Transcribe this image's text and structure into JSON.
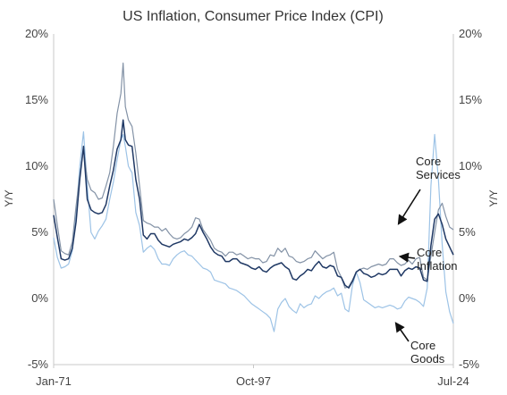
{
  "chart_data": {
    "type": "line",
    "title": "US Inflation, Consumer Price Index (CPI)",
    "ylabel": "Y/Y",
    "ylabel_right": "Y/Y",
    "ylim": [
      -5,
      20
    ],
    "yticks": [
      -5,
      0,
      5,
      10,
      15,
      20
    ],
    "ytick_labels": [
      "-5%",
      "0%",
      "5%",
      "10%",
      "15%",
      "20%"
    ],
    "xlim": [
      1971.0,
      2024.5
    ],
    "xticks": [
      1971.0,
      1997.75,
      2024.5
    ],
    "xtick_labels": [
      "Jan-71",
      "Oct-97",
      "Jul-24"
    ],
    "grid": false,
    "legend": "none",
    "series": [
      {
        "name": "Core Services",
        "color": "#8392a6",
        "x": [
          1971.0,
          1971.5,
          1972.0,
          1972.5,
          1973.0,
          1973.5,
          1974.0,
          1974.5,
          1975.0,
          1975.5,
          1976.0,
          1976.5,
          1977.0,
          1977.5,
          1978.0,
          1978.5,
          1979.0,
          1979.5,
          1980.0,
          1980.3,
          1980.6,
          1981.0,
          1981.5,
          1982.0,
          1982.5,
          1983.0,
          1983.5,
          1984.0,
          1984.5,
          1985.0,
          1985.5,
          1986.0,
          1986.5,
          1987.0,
          1987.5,
          1988.0,
          1988.5,
          1989.0,
          1989.5,
          1990.0,
          1990.5,
          1991.0,
          1991.5,
          1992.0,
          1992.5,
          1993.0,
          1993.5,
          1994.0,
          1994.5,
          1995.0,
          1995.5,
          1996.0,
          1996.5,
          1997.0,
          1997.5,
          1998.0,
          1998.5,
          1999.0,
          1999.5,
          2000.0,
          2000.5,
          2001.0,
          2001.5,
          2002.0,
          2002.5,
          2003.0,
          2003.5,
          2004.0,
          2004.5,
          2005.0,
          2005.5,
          2006.0,
          2006.5,
          2007.0,
          2007.5,
          2008.0,
          2008.5,
          2009.0,
          2009.5,
          2010.0,
          2010.5,
          2011.0,
          2011.5,
          2012.0,
          2012.5,
          2013.0,
          2013.5,
          2014.0,
          2014.5,
          2015.0,
          2015.5,
          2016.0,
          2016.5,
          2017.0,
          2017.5,
          2018.0,
          2018.5,
          2019.0,
          2019.5,
          2020.0,
          2020.5,
          2021.0,
          2021.5,
          2022.0,
          2022.5,
          2023.0,
          2023.5,
          2024.0,
          2024.5
        ],
        "y": [
          7.5,
          5.5,
          3.6,
          3.4,
          3.3,
          4.3,
          7.0,
          9.3,
          11.3,
          9.0,
          8.2,
          8.0,
          7.5,
          7.6,
          8.5,
          9.5,
          11.5,
          14.0,
          15.5,
          17.8,
          14.5,
          13.5,
          13.0,
          11.0,
          8.5,
          5.9,
          5.7,
          5.6,
          5.4,
          5.4,
          5.1,
          5.3,
          4.9,
          4.6,
          4.5,
          4.6,
          4.9,
          5.1,
          5.4,
          6.1,
          6.0,
          5.2,
          4.8,
          4.4,
          3.8,
          3.6,
          3.5,
          3.2,
          3.5,
          3.5,
          3.3,
          3.4,
          3.2,
          3.0,
          3.1,
          3.0,
          3.0,
          2.7,
          2.8,
          3.3,
          3.2,
          3.8,
          3.5,
          3.8,
          3.2,
          3.1,
          2.8,
          2.7,
          2.8,
          3.0,
          3.1,
          3.6,
          3.3,
          3.0,
          3.2,
          3.3,
          3.5,
          2.2,
          1.6,
          0.8,
          0.9,
          1.4,
          2.0,
          2.2,
          2.3,
          2.2,
          2.4,
          2.5,
          2.6,
          2.5,
          2.6,
          3.0,
          3.0,
          2.7,
          2.5,
          2.6,
          2.9,
          2.6,
          3.0,
          3.1,
          1.6,
          1.4,
          3.2,
          5.0,
          6.7,
          7.2,
          6.2,
          5.4,
          5.2
        ]
      },
      {
        "name": "Core Inflation",
        "color": "#1f3864",
        "x": [
          1971.0,
          1971.5,
          1972.0,
          1972.5,
          1973.0,
          1973.5,
          1974.0,
          1974.5,
          1975.0,
          1975.5,
          1976.0,
          1976.5,
          1977.0,
          1977.5,
          1978.0,
          1978.5,
          1979.0,
          1979.5,
          1980.0,
          1980.3,
          1980.6,
          1981.0,
          1981.5,
          1982.0,
          1982.5,
          1983.0,
          1983.5,
          1984.0,
          1984.5,
          1985.0,
          1985.5,
          1986.0,
          1986.5,
          1987.0,
          1987.5,
          1988.0,
          1988.5,
          1989.0,
          1989.5,
          1990.0,
          1990.5,
          1991.0,
          1991.5,
          1992.0,
          1992.5,
          1993.0,
          1993.5,
          1994.0,
          1994.5,
          1995.0,
          1995.5,
          1996.0,
          1996.5,
          1997.0,
          1997.5,
          1998.0,
          1998.5,
          1999.0,
          1999.5,
          2000.0,
          2000.5,
          2001.0,
          2001.5,
          2002.0,
          2002.5,
          2003.0,
          2003.5,
          2004.0,
          2004.5,
          2005.0,
          2005.5,
          2006.0,
          2006.5,
          2007.0,
          2007.5,
          2008.0,
          2008.5,
          2009.0,
          2009.5,
          2010.0,
          2010.5,
          2011.0,
          2011.5,
          2012.0,
          2012.5,
          2013.0,
          2013.5,
          2014.0,
          2014.5,
          2015.0,
          2015.5,
          2016.0,
          2016.5,
          2017.0,
          2017.5,
          2018.0,
          2018.5,
          2019.0,
          2019.5,
          2020.0,
          2020.5,
          2021.0,
          2021.5,
          2022.0,
          2022.5,
          2023.0,
          2023.5,
          2024.0,
          2024.5
        ],
        "y": [
          6.3,
          4.6,
          3.0,
          2.9,
          3.0,
          3.8,
          5.8,
          9.0,
          11.5,
          7.5,
          6.7,
          6.5,
          6.4,
          6.5,
          7.1,
          8.5,
          9.7,
          11.3,
          12.0,
          13.5,
          12.0,
          11.6,
          11.5,
          9.0,
          7.5,
          4.8,
          4.5,
          4.9,
          4.9,
          4.4,
          4.1,
          4.0,
          3.9,
          4.1,
          4.2,
          4.3,
          4.5,
          4.4,
          4.6,
          4.9,
          5.6,
          5.0,
          4.5,
          3.9,
          3.5,
          3.3,
          3.2,
          2.8,
          2.8,
          3.0,
          3.0,
          2.7,
          2.6,
          2.5,
          2.3,
          2.2,
          2.4,
          2.1,
          2.0,
          2.3,
          2.5,
          2.6,
          2.7,
          2.4,
          2.2,
          1.5,
          1.4,
          1.7,
          1.9,
          2.2,
          2.1,
          2.5,
          2.8,
          2.4,
          2.3,
          2.5,
          2.4,
          1.7,
          1.6,
          1.0,
          0.8,
          1.3,
          2.0,
          2.2,
          1.9,
          1.8,
          1.6,
          1.7,
          1.9,
          1.8,
          1.9,
          2.2,
          2.2,
          2.2,
          1.7,
          2.1,
          2.3,
          2.2,
          2.4,
          2.3,
          1.4,
          1.3,
          4.0,
          6.0,
          6.4,
          5.6,
          4.5,
          3.9,
          3.3
        ]
      },
      {
        "name": "Core Goods",
        "color": "#9dc3e6",
        "x": [
          1971.0,
          1971.5,
          1972.0,
          1972.5,
          1973.0,
          1973.5,
          1974.0,
          1974.5,
          1975.0,
          1975.5,
          1976.0,
          1976.5,
          1977.0,
          1977.5,
          1978.0,
          1978.5,
          1979.0,
          1979.5,
          1980.0,
          1980.3,
          1980.6,
          1981.0,
          1981.5,
          1982.0,
          1982.5,
          1983.0,
          1983.5,
          1984.0,
          1984.5,
          1985.0,
          1985.5,
          1986.0,
          1986.5,
          1987.0,
          1987.5,
          1988.0,
          1988.5,
          1989.0,
          1989.5,
          1990.0,
          1990.5,
          1991.0,
          1991.5,
          1992.0,
          1992.5,
          1993.0,
          1993.5,
          1994.0,
          1994.5,
          1995.0,
          1995.5,
          1996.0,
          1996.5,
          1997.0,
          1997.5,
          1998.0,
          1998.5,
          1999.0,
          1999.5,
          2000.0,
          2000.5,
          2001.0,
          2001.5,
          2002.0,
          2002.5,
          2003.0,
          2003.5,
          2004.0,
          2004.5,
          2005.0,
          2005.5,
          2006.0,
          2006.5,
          2007.0,
          2007.5,
          2008.0,
          2008.5,
          2009.0,
          2009.5,
          2010.0,
          2010.5,
          2011.0,
          2011.5,
          2012.0,
          2012.5,
          2013.0,
          2013.5,
          2014.0,
          2014.5,
          2015.0,
          2015.5,
          2016.0,
          2016.5,
          2017.0,
          2017.5,
          2018.0,
          2018.5,
          2019.0,
          2019.5,
          2020.0,
          2020.5,
          2021.0,
          2021.5,
          2022.0,
          2022.5,
          2023.0,
          2023.5,
          2024.0,
          2024.5
        ],
        "y": [
          4.6,
          3.1,
          2.3,
          2.4,
          2.6,
          3.6,
          6.5,
          10.0,
          12.6,
          8.5,
          5.0,
          4.5,
          5.1,
          5.5,
          6.0,
          7.5,
          8.8,
          10.5,
          12.0,
          12.4,
          11.5,
          10.0,
          9.5,
          6.5,
          5.5,
          3.5,
          3.8,
          4.0,
          3.7,
          3.0,
          2.6,
          2.6,
          2.5,
          3.0,
          3.3,
          3.5,
          3.6,
          3.3,
          3.2,
          2.9,
          2.6,
          2.3,
          2.2,
          2.0,
          1.4,
          1.3,
          1.2,
          1.1,
          0.8,
          0.7,
          0.6,
          0.4,
          0.2,
          -0.1,
          -0.4,
          -0.6,
          -0.8,
          -1.0,
          -1.2,
          -1.5,
          -2.5,
          -0.8,
          -0.3,
          0.0,
          -0.6,
          -0.9,
          -1.1,
          -0.4,
          -0.7,
          -0.5,
          -0.4,
          0.2,
          0.0,
          0.3,
          0.5,
          0.6,
          0.8,
          0.2,
          0.4,
          -0.8,
          -1.0,
          1.0,
          2.0,
          1.2,
          -0.1,
          -0.3,
          -0.5,
          -0.7,
          -0.6,
          -0.7,
          -0.6,
          -0.5,
          -0.6,
          -0.8,
          -0.7,
          -0.2,
          0.1,
          0.0,
          -0.1,
          -0.3,
          -0.6,
          0.8,
          8.5,
          12.4,
          9.0,
          4.1,
          0.5,
          -1.0,
          -1.9
        ]
      }
    ],
    "annotations": [
      {
        "lines": [
          "Core",
          "Services"
        ],
        "series": "Core Services"
      },
      {
        "lines": [
          "Core",
          "Inflation"
        ],
        "series": "Core Inflation"
      },
      {
        "lines": [
          "Core",
          "Goods"
        ],
        "series": "Core Goods"
      }
    ]
  }
}
